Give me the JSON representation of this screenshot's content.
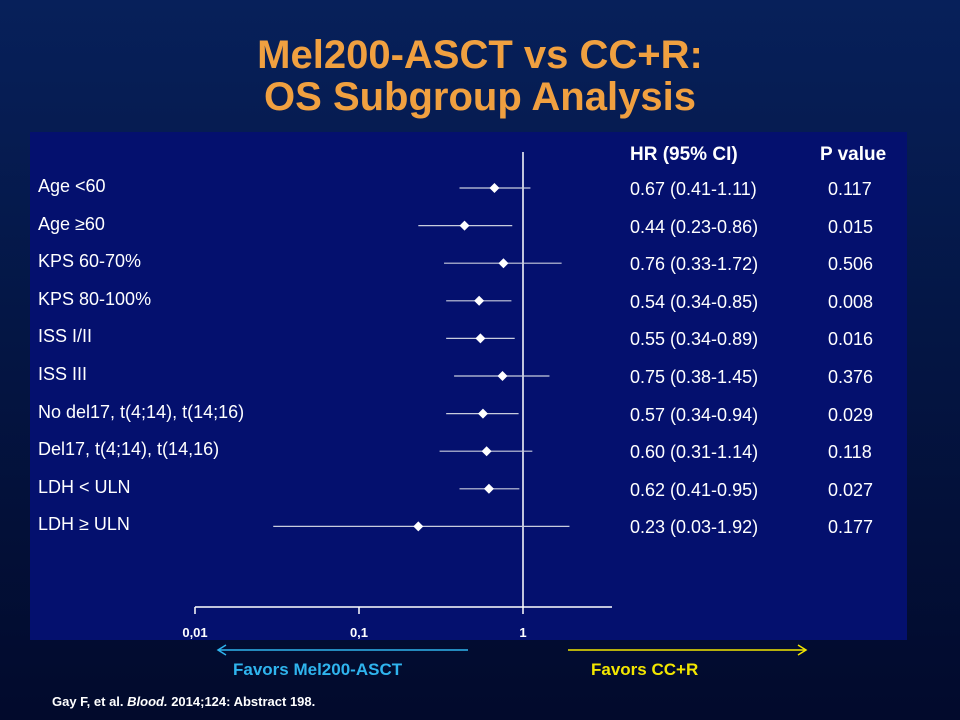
{
  "title": {
    "line1": "Mel200-ASCT vs CC+R:",
    "line2": "OS Subgroup Analysis"
  },
  "table_headers": {
    "hr": "HR   (95% CI)",
    "p": "P value"
  },
  "rows": [
    {
      "label": "Age <60",
      "hr_text": "0.67 (0.41-1.11)",
      "p": "0.117"
    },
    {
      "label": "Age ≥60",
      "hr_text": "0.44 (0.23-0.86)",
      "p": "0.015"
    },
    {
      "label": "KPS 60-70%",
      "hr_text": "0.76 (0.33-1.72)",
      "p": "0.506"
    },
    {
      "label": "KPS 80-100%",
      "hr_text": "0.54 (0.34-0.85)",
      "p": "0.008"
    },
    {
      "label": "ISS I/II",
      "hr_text": "0.55 (0.34-0.89)",
      "p": "0.016"
    },
    {
      "label": "ISS III",
      "hr_text": "0.75 (0.38-1.45)",
      "p": "0.376"
    },
    {
      "label": "No del17, t(4;14), t(14;16)",
      "hr_text": "0.57 (0.34-0.94)",
      "p": "0.029"
    },
    {
      "label": "Del17, t(4;14), t(14,16)",
      "hr_text": "0.60 (0.31-1.14)",
      "p": "0.118"
    },
    {
      "label": "LDH < ULN",
      "hr_text": "0.62 (0.41-0.95)",
      "p": "0.027"
    },
    {
      "label": "LDH ≥ ULN",
      "hr_text": "0.23 (0.03-1.92)",
      "p": "0.177"
    }
  ],
  "chart_data": {
    "type": "scatter",
    "subtype": "forest-plot",
    "x_scale": "log",
    "xlim": [
      0.01,
      1.3
    ],
    "xticks": [
      "0,01",
      "0,1",
      "1"
    ],
    "xtick_values": [
      0.01,
      0.1,
      1
    ],
    "reference_line": 1,
    "categories": [
      "Age <60",
      "Age ≥60",
      "KPS 60-70%",
      "KPS 80-100%",
      "ISS I/II",
      "ISS III",
      "No del17, t(4;14), t(14;16)",
      "Del17, t(4;14), t(14,16)",
      "LDH < ULN",
      "LDH ≥ ULN"
    ],
    "hr": [
      0.67,
      0.44,
      0.76,
      0.54,
      0.55,
      0.75,
      0.57,
      0.6,
      0.62,
      0.23
    ],
    "ci_low": [
      0.41,
      0.23,
      0.33,
      0.34,
      0.34,
      0.38,
      0.34,
      0.31,
      0.41,
      0.03
    ],
    "ci_high": [
      1.11,
      0.86,
      1.72,
      0.85,
      0.89,
      1.45,
      0.94,
      1.14,
      0.95,
      1.92
    ]
  },
  "favors": {
    "left": "Favors Mel200-ASCT",
    "right": "Favors  CC+R"
  },
  "colors": {
    "title": "#f0a040",
    "panel": "#04106e",
    "favor_left": "#2fb4ee",
    "favor_right": "#f2e600"
  },
  "citation": {
    "prefix": "Gay F, et al. ",
    "journal": "Blood.",
    "suffix": " 2014;124: Abstract 198."
  }
}
